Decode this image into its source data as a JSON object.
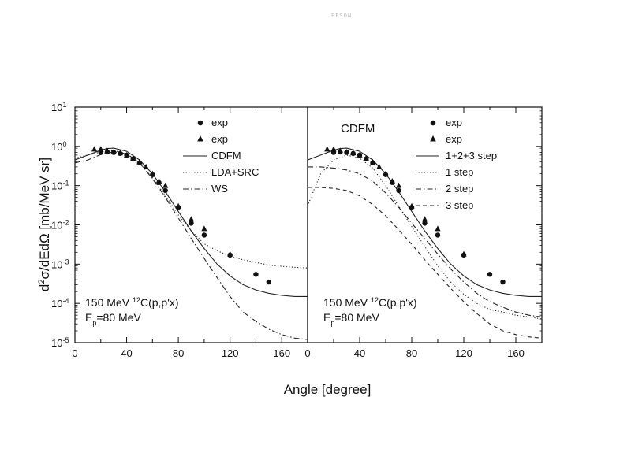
{
  "page": {
    "scan_stamp": "EPSON"
  },
  "chart_data": [
    {
      "type": "line",
      "panel": "left",
      "title": "",
      "xlabel": "Angle [degree]",
      "ylabel": "d2σ/dEdΩ [mb/MeV sr]",
      "ylabel_parts": {
        "d": "d",
        "sup2": "2",
        "rest": "σ/dEdΩ [mb/MeV sr]"
      },
      "xlim": [
        0,
        180
      ],
      "ylim_log10": [
        -5,
        1
      ],
      "xticks": [
        0,
        40,
        80,
        120,
        160
      ],
      "ytick_labels": [
        {
          "base": "10",
          "exp": "1",
          "value_log10": 1
        },
        {
          "base": "10",
          "exp": "0",
          "value_log10": 0
        },
        {
          "base": "10",
          "exp": "-1",
          "value_log10": -1
        },
        {
          "base": "10",
          "exp": "-2",
          "value_log10": -2
        },
        {
          "base": "10",
          "exp": "-3",
          "value_log10": -3
        },
        {
          "base": "10",
          "exp": "-4",
          "value_log10": -4
        },
        {
          "base": "10",
          "exp": "-5",
          "value_log10": -5
        }
      ],
      "annotation": {
        "line1_pre": "150 MeV ",
        "line1_sup": "12",
        "line1_post": "C(p,p'x)",
        "line2_pre": "E",
        "line2_sub": "p",
        "line2_post": "=80 MeV"
      },
      "legend": [
        {
          "label": "exp",
          "marker": "circle"
        },
        {
          "label": "exp",
          "marker": "triangle"
        },
        {
          "label": "CDFM",
          "style": "solid"
        },
        {
          "label": "LDA+SRC",
          "style": "dotted"
        },
        {
          "label": "WS",
          "style": "dashdot"
        }
      ],
      "scatter": [
        {
          "name": "exp-circle",
          "x": [
            20,
            25,
            30,
            35,
            40,
            45,
            50,
            60,
            65,
            70,
            80,
            90,
            100,
            120,
            140,
            150
          ],
          "y": [
            0.7,
            0.72,
            0.7,
            0.66,
            0.6,
            0.48,
            0.38,
            0.19,
            0.12,
            0.075,
            0.028,
            0.011,
            0.0055,
            0.0017,
            0.00055,
            0.00035
          ]
        },
        {
          "name": "exp-triangle",
          "x": [
            15,
            20,
            25,
            30,
            35,
            40,
            45,
            50,
            55,
            60,
            65,
            70,
            80,
            90,
            100,
            120
          ],
          "y": [
            0.85,
            0.85,
            0.78,
            0.72,
            0.68,
            0.6,
            0.5,
            0.4,
            0.3,
            0.2,
            0.13,
            0.1,
            0.03,
            0.014,
            0.008,
            0.0018
          ]
        }
      ],
      "series": [
        {
          "name": "CDFM",
          "style": "solid",
          "x": [
            0,
            10,
            20,
            25,
            30,
            40,
            50,
            60,
            70,
            80,
            90,
            100,
            110,
            120,
            130,
            140,
            150,
            160,
            170,
            180
          ],
          "y": [
            0.45,
            0.6,
            0.8,
            0.88,
            0.9,
            0.75,
            0.45,
            0.2,
            0.07,
            0.022,
            0.007,
            0.0025,
            0.001,
            0.0005,
            0.0003,
            0.00022,
            0.00018,
            0.00016,
            0.00015,
            0.00015
          ]
        },
        {
          "name": "LDA+SRC",
          "style": "dotted",
          "x": [
            0,
            10,
            20,
            30,
            40,
            50,
            60,
            70,
            80,
            90,
            100,
            110,
            120,
            130,
            140,
            150,
            160,
            170,
            180
          ],
          "y": [
            0.5,
            0.6,
            0.72,
            0.78,
            0.65,
            0.38,
            0.16,
            0.055,
            0.018,
            0.007,
            0.0033,
            0.0022,
            0.0016,
            0.0013,
            0.0011,
            0.00095,
            0.00088,
            0.00083,
            0.0008
          ]
        },
        {
          "name": "WS",
          "style": "dashdot",
          "x": [
            0,
            10,
            20,
            30,
            40,
            50,
            60,
            70,
            80,
            90,
            100,
            110,
            120,
            130,
            140,
            150,
            160,
            170,
            180
          ],
          "y": [
            0.38,
            0.45,
            0.62,
            0.72,
            0.65,
            0.38,
            0.15,
            0.05,
            0.015,
            0.0045,
            0.0014,
            0.00045,
            0.00015,
            6e-05,
            3.5e-05,
            2.2e-05,
            1.6e-05,
            1.3e-05,
            1.2e-05
          ]
        }
      ]
    },
    {
      "type": "line",
      "panel": "right",
      "title": "CDFM",
      "xlabel": "Angle [degree]",
      "xlim": [
        0,
        180
      ],
      "ylim_log10": [
        -5,
        1
      ],
      "xticks": [
        0,
        40,
        80,
        120,
        160
      ],
      "annotation": {
        "line1_pre": "150 MeV ",
        "line1_sup": "12",
        "line1_post": "C(p,p'x)",
        "line2_pre": "E",
        "line2_sub": "p",
        "line2_post": "=80 MeV"
      },
      "legend": [
        {
          "label": "exp",
          "marker": "circle"
        },
        {
          "label": "exp",
          "marker": "triangle"
        },
        {
          "label": "1+2+3 step",
          "style": "solid"
        },
        {
          "label": "1 step",
          "style": "dotted"
        },
        {
          "label": "2 step",
          "style": "dashdot"
        },
        {
          "label": "3 step",
          "style": "dashed"
        }
      ],
      "scatter": [
        {
          "name": "exp-circle",
          "x": [
            20,
            25,
            30,
            35,
            40,
            45,
            50,
            60,
            65,
            70,
            80,
            90,
            100,
            120,
            140,
            150
          ],
          "y": [
            0.7,
            0.72,
            0.7,
            0.66,
            0.6,
            0.48,
            0.38,
            0.19,
            0.12,
            0.075,
            0.028,
            0.011,
            0.0055,
            0.0017,
            0.00055,
            0.00035
          ]
        },
        {
          "name": "exp-triangle",
          "x": [
            15,
            20,
            25,
            30,
            35,
            40,
            45,
            50,
            55,
            60,
            65,
            70,
            80,
            90,
            100,
            120
          ],
          "y": [
            0.85,
            0.85,
            0.78,
            0.72,
            0.68,
            0.6,
            0.5,
            0.4,
            0.3,
            0.2,
            0.13,
            0.1,
            0.03,
            0.014,
            0.008,
            0.0018
          ]
        }
      ],
      "series": [
        {
          "name": "1+2+3 step",
          "style": "solid",
          "x": [
            0,
            10,
            20,
            25,
            30,
            40,
            50,
            60,
            70,
            80,
            90,
            100,
            110,
            120,
            130,
            140,
            150,
            160,
            170,
            180
          ],
          "y": [
            0.45,
            0.6,
            0.8,
            0.88,
            0.9,
            0.75,
            0.45,
            0.2,
            0.07,
            0.022,
            0.007,
            0.0025,
            0.001,
            0.0005,
            0.0003,
            0.00022,
            0.00018,
            0.00016,
            0.00015,
            0.00015
          ]
        },
        {
          "name": "1 step",
          "style": "dotted",
          "x": [
            0,
            5,
            10,
            20,
            30,
            40,
            50,
            60,
            70,
            80,
            90,
            100,
            110,
            120,
            130,
            140,
            150,
            160,
            170,
            180
          ],
          "y": [
            0.03,
            0.08,
            0.2,
            0.45,
            0.6,
            0.5,
            0.28,
            0.1,
            0.03,
            0.009,
            0.0028,
            0.0009,
            0.00035,
            0.00017,
            0.0001,
            7e-05,
            6e-05,
            5e-05,
            4.5e-05,
            4e-05
          ]
        },
        {
          "name": "2 step",
          "style": "dashdot",
          "x": [
            0,
            10,
            20,
            30,
            40,
            50,
            60,
            70,
            80,
            90,
            100,
            110,
            120,
            130,
            140,
            150,
            160,
            170,
            180
          ],
          "y": [
            0.3,
            0.3,
            0.28,
            0.25,
            0.2,
            0.13,
            0.065,
            0.028,
            0.011,
            0.0045,
            0.0018,
            0.00075,
            0.00035,
            0.00018,
            0.00011,
            8e-05,
            6e-05,
            5e-05,
            4.5e-05
          ]
        },
        {
          "name": "3 step",
          "style": "dashed",
          "x": [
            0,
            10,
            20,
            30,
            40,
            50,
            60,
            70,
            80,
            90,
            100,
            110,
            120,
            130,
            140,
            150,
            160,
            170,
            180
          ],
          "y": [
            0.09,
            0.09,
            0.085,
            0.075,
            0.055,
            0.033,
            0.017,
            0.0075,
            0.0032,
            0.0013,
            0.00055,
            0.00024,
            0.00011,
            5.5e-05,
            3e-05,
            2e-05,
            1.6e-05,
            1.4e-05,
            1.3e-05
          ]
        }
      ]
    }
  ]
}
